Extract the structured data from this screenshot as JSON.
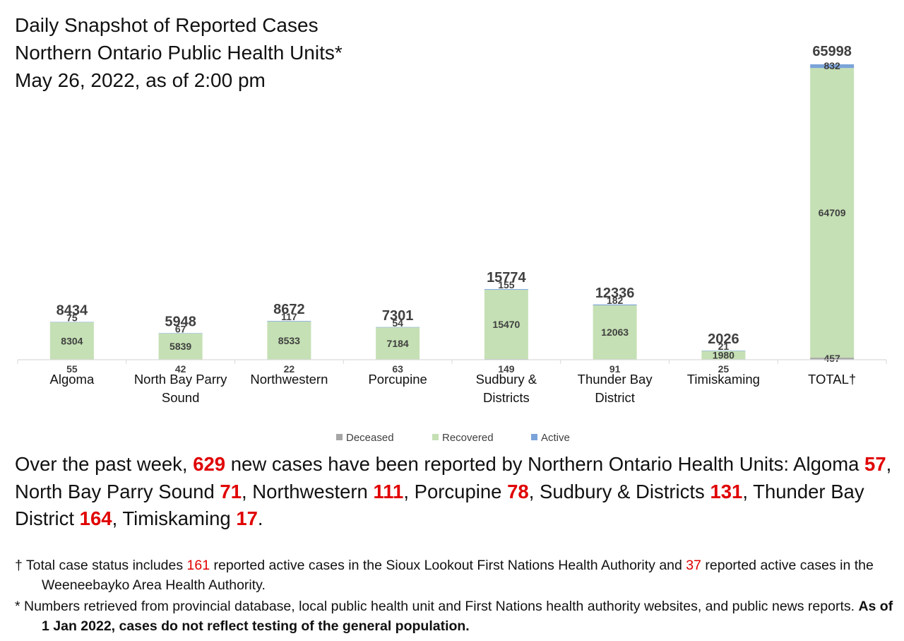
{
  "title_lines": [
    "Daily Snapshot of Reported Cases",
    "Northern Ontario Public Health Units*",
    "May 26, 2022, as of 2:00 pm"
  ],
  "chart_data": {
    "type": "bar",
    "stacked": true,
    "categories": [
      "Algoma",
      "North Bay Parry Sound",
      "Northwestern",
      "Porcupine",
      "Sudbury & Districts",
      "Thunder Bay District",
      "Timiskaming",
      "TOTAL†"
    ],
    "category_lines": [
      [
        "Algoma"
      ],
      [
        "North Bay Parry",
        "Sound"
      ],
      [
        "Northwestern"
      ],
      [
        "Porcupine"
      ],
      [
        "Sudbury &",
        "Districts"
      ],
      [
        "Thunder Bay",
        "District"
      ],
      [
        "Timiskaming"
      ],
      [
        "TOTAL†"
      ]
    ],
    "series": [
      {
        "name": "Deceased",
        "color": "#a6a6a6",
        "values": [
          55,
          42,
          22,
          63,
          149,
          91,
          25,
          457
        ]
      },
      {
        "name": "Recovered",
        "color": "#c5e0b4",
        "values": [
          8304,
          5839,
          8533,
          7184,
          15470,
          12063,
          1980,
          64709
        ]
      },
      {
        "name": "Active",
        "color": "#7aa3d9",
        "values": [
          75,
          67,
          117,
          54,
          155,
          182,
          21,
          832
        ]
      }
    ],
    "totals": [
      8434,
      5948,
      8672,
      7301,
      15774,
      12336,
      2026,
      65998
    ],
    "legend_position": "bottom",
    "grid": false,
    "ylim": [
      0,
      66000
    ]
  },
  "summary": {
    "p1": "Over the past week, ",
    "total_new": "629",
    "p2": " new cases have been reported by Northern Ontario Health Units: ",
    "items": [
      {
        "name": "Algoma",
        "value": "57",
        "after": ", "
      },
      {
        "name": "North Bay Parry Sound",
        "value": "71",
        "after": ", "
      },
      {
        "name": "Northwestern",
        "value": "111",
        "after": ", "
      },
      {
        "name": "Porcupine",
        "value": "78",
        "after": ", "
      },
      {
        "name": "Sudbury & Districts",
        "value": "131",
        "after": ", "
      },
      {
        "name": "Thunder Bay District",
        "value": "164",
        "after": ", "
      },
      {
        "name": "Timiskaming",
        "value": "17",
        "after": "."
      }
    ]
  },
  "notes": {
    "n1_a": "† Total case status includes ",
    "n1_v1": "161",
    "n1_b": " reported active cases in the Sioux Lookout First Nations Health Authority and ",
    "n1_v2": "37",
    "n1_c": " reported active cases in the Weeneebayko Area Health Authority.",
    "n2_a": "* Numbers retrieved from provincial database, local public health unit and First Nations health authority websites, and public news reports. ",
    "n2_b": "As of 1 Jan 2022, cases do not reflect testing of the general population."
  }
}
